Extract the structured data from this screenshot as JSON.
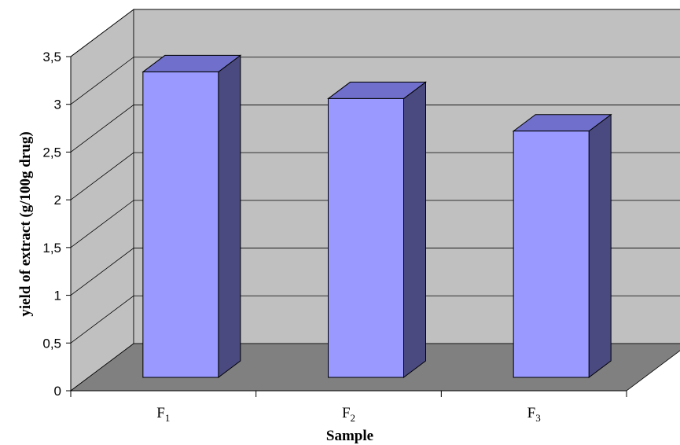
{
  "chart_data": {
    "type": "bar",
    "categories": [
      {
        "base": "F",
        "sub": "1"
      },
      {
        "base": "F",
        "sub": "2"
      },
      {
        "base": "F",
        "sub": "3"
      }
    ],
    "values": [
      3.2,
      2.92,
      2.58
    ],
    "title": "",
    "xlabel": "Sample",
    "ylabel": "yield of extract (g/100g drug)",
    "ylim": [
      0,
      3.5
    ],
    "yticks": [
      "0",
      "0,5",
      "1",
      "1,5",
      "2",
      "2,5",
      "3",
      "3,5"
    ],
    "yticks_values": [
      0,
      0.5,
      1,
      1.5,
      2,
      2.5,
      3,
      3.5
    ],
    "grid": true,
    "style": "3d",
    "colors": {
      "bar_front": "#9999ff",
      "bar_top": "#7070cc",
      "bar_side": "#4a4a80",
      "wall": "#c0c0c0",
      "floor": "#808080",
      "gridline": "#000000"
    }
  }
}
